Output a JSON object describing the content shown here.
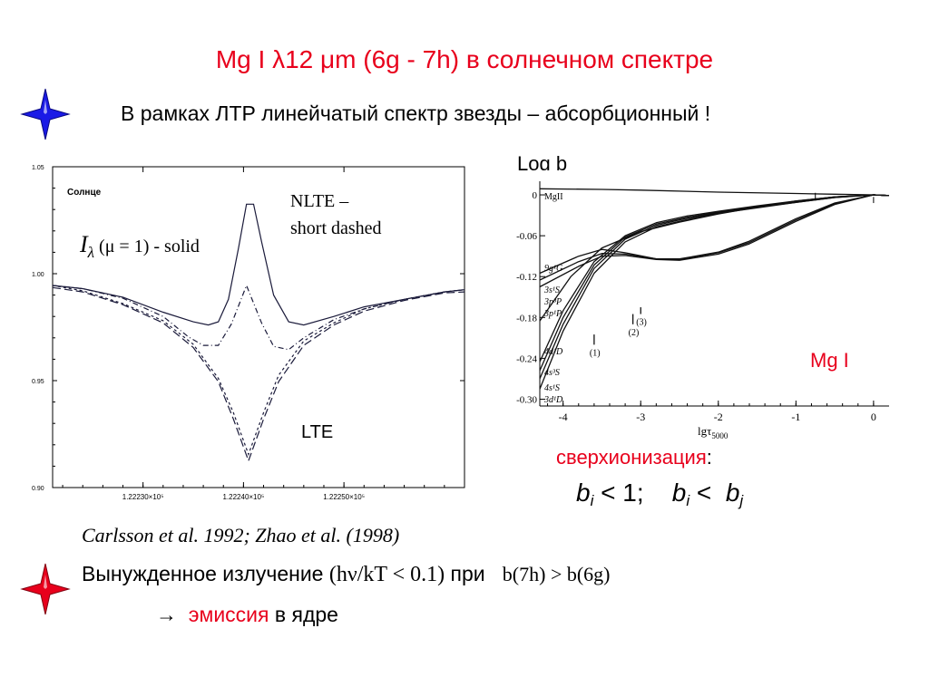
{
  "title": {
    "main": "Mg I λ12 μm (6g - 7h) в солнечном спектре"
  },
  "subtitle": "В рамках ЛТР линейчатый спектр звезды – абсорбционный !",
  "icons": {
    "bullet_top": "blue-four-point-star-icon",
    "bullet_bottom": "red-four-point-star-icon"
  },
  "colors": {
    "accent": "#e8001c",
    "star_blue": "#1a1ae6",
    "star_red": "#e8001c"
  },
  "left_chart_annotations": {
    "panel_label": "Солнце",
    "intensity_I": "I",
    "intensity_lambda": "λ",
    "intensity_rest": " (μ = 1) - solid",
    "nlte_line1": "NLTE –",
    "nlte_line2": "short dashed",
    "lte": "LTE"
  },
  "right_chart_annotations": {
    "logb": "Log b",
    "mgi": "Mg I",
    "level_mgii": "MgII",
    "level_9g": "9g¹G",
    "level_3s": "3s¹S",
    "level_3p3": "3p³P",
    "level_3p1": "3p¹P",
    "level_4d": "4d¹D",
    "level_4s3": "4s³S",
    "level_4s1": "4s¹S",
    "level_3d": "3d¹D",
    "mark_1": "(1)",
    "mark_2": "(2)",
    "mark_3": "(3)",
    "xlabel": "lgτ",
    "xlabel_sub": "5000"
  },
  "ionization": {
    "label": "сверхионизация",
    "colon": ":",
    "b": "b",
    "i": "i",
    "j": "j",
    "lt": "<",
    "one": "1;"
  },
  "citation": "Carlsson et al. 1992; Zhao et al. (1998)",
  "stimulated": {
    "text": "Вынужденное излучение ",
    "formula": "(hν/kT < 0.1)",
    "pri": " при ",
    "condition": "b(7h) > b(6g)"
  },
  "emission": {
    "arrow": "→",
    "word": "эмиссия",
    "rest": " в ядре"
  },
  "chart_data": [
    {
      "type": "line",
      "id": "solar-profile",
      "xlabel": "",
      "ylabel": "",
      "x_unit_ticks": [
        "1.22230×10⁵",
        "1.22240×10⁵",
        "1.22250×10⁵"
      ],
      "x_ticks": [
        122230,
        122240,
        122250
      ],
      "xlim": [
        122221,
        122262
      ],
      "y_ticks": [
        "0.90",
        "0.95",
        "1.00",
        "1.05"
      ],
      "ylim": [
        0.9,
        1.05
      ],
      "grid": false,
      "series": [
        {
          "style": "solid",
          "x": [
            122221,
            122224,
            122228,
            122232,
            122235,
            122236.5,
            122237.5,
            122238.5,
            122239.5,
            122240.3,
            122241,
            122241.8,
            122243,
            122244.5,
            122246,
            122249,
            122252,
            122256,
            122260,
            122262
          ],
          "values": [
            0.9945,
            0.993,
            0.989,
            0.982,
            0.9775,
            0.976,
            0.9775,
            0.988,
            1.012,
            1.0325,
            1.0325,
            1.015,
            0.99,
            0.9775,
            0.976,
            0.98,
            0.9845,
            0.988,
            0.9915,
            0.9925
          ]
        },
        {
          "style": "dash-dot",
          "x": [
            122221,
            122224,
            122228,
            122232,
            122234.5,
            122236,
            122237.5,
            122238.8,
            122240.3,
            122241.8,
            122243,
            122244.5,
            122246,
            122249,
            122252,
            122256,
            122260,
            122262
          ],
          "values": [
            0.9945,
            0.993,
            0.9885,
            0.98,
            0.9705,
            0.9665,
            0.9665,
            0.9765,
            0.9945,
            0.977,
            0.966,
            0.9645,
            0.97,
            0.9785,
            0.9835,
            0.988,
            0.9915,
            0.9925
          ]
        },
        {
          "style": "long-dash",
          "x": [
            122221,
            122224,
            122228,
            122232,
            122235,
            122237.5,
            122239,
            122240.5,
            122242,
            122243.5,
            122246,
            122249,
            122252,
            122256,
            122260,
            122262
          ],
          "values": [
            0.9935,
            0.9915,
            0.9855,
            0.977,
            0.9655,
            0.9495,
            0.932,
            0.9125,
            0.932,
            0.9495,
            0.9665,
            0.976,
            0.9825,
            0.9875,
            0.991,
            0.9915
          ]
        },
        {
          "style": "short-dash",
          "x": [
            122221,
            122224,
            122228,
            122232,
            122235,
            122237.5,
            122239,
            122240.5,
            122242,
            122243.5,
            122246,
            122249,
            122252,
            122256,
            122260,
            122262
          ],
          "values": [
            0.9945,
            0.992,
            0.986,
            0.978,
            0.967,
            0.951,
            0.935,
            0.9155,
            0.935,
            0.9525,
            0.9685,
            0.977,
            0.9835,
            0.988,
            0.9915,
            0.9925
          ]
        }
      ]
    },
    {
      "type": "line",
      "id": "departure-coefficients",
      "xlabel": "lgτ5000",
      "ylabel": "Log b",
      "x_ticks": [
        "-4",
        "-3",
        "-2",
        "-1",
        "0"
      ],
      "xlim": [
        -4.3,
        0.2
      ],
      "y_ticks": [
        "0",
        "-0.06",
        "-0.12",
        "-0.18",
        "-0.24",
        "-0.30"
      ],
      "ylim": [
        -0.31,
        0.02
      ],
      "grid": false,
      "series": [
        {
          "name": "MgII",
          "x": [
            -4.3,
            -3.5,
            -3.0,
            -2.0,
            -1.0,
            -0.5,
            0.0,
            0.2
          ],
          "values": [
            0.009,
            0.008,
            0.007,
            0.004,
            0.002,
            0.001,
            0.0,
            -0.001
          ]
        },
        {
          "name": "9g¹G",
          "x": [
            -4.3,
            -3.8,
            -3.5,
            -3.2,
            -2.8,
            -2.5,
            -2.0,
            -1.6,
            -1.0,
            -0.5,
            0.0,
            0.2
          ],
          "values": [
            -0.115,
            -0.09,
            -0.08,
            -0.085,
            -0.094,
            -0.094,
            -0.084,
            -0.068,
            -0.035,
            -0.012,
            0.0,
            -0.001
          ]
        },
        {
          "name": "3s¹S",
          "x": [
            -4.3,
            -3.8,
            -3.5,
            -3.2,
            -2.8,
            -2.5,
            -2.0,
            -1.6,
            -1.0,
            -0.5,
            0.0,
            0.2
          ],
          "values": [
            -0.125,
            -0.098,
            -0.086,
            -0.087,
            -0.094,
            -0.095,
            -0.085,
            -0.07,
            -0.037,
            -0.013,
            0.0,
            -0.001
          ]
        },
        {
          "name": "3p³P",
          "x": [
            -4.3,
            -3.8,
            -3.5,
            -3.2,
            -2.8,
            -2.5,
            -2.0,
            -1.6,
            -1.0,
            -0.5,
            0.0,
            0.2
          ],
          "values": [
            -0.135,
            -0.105,
            -0.09,
            -0.089,
            -0.095,
            -0.096,
            -0.087,
            -0.072,
            -0.039,
            -0.014,
            0.0,
            -0.001
          ]
        },
        {
          "name": "3p¹P",
          "x": [
            -4.3,
            -3.9,
            -3.5,
            -3.0,
            -2.5,
            -2.0,
            -1.5,
            -1.0,
            -0.5,
            0.0,
            0.2
          ],
          "values": [
            -0.185,
            -0.12,
            -0.078,
            -0.054,
            -0.04,
            -0.028,
            -0.018,
            -0.009,
            -0.003,
            0.0,
            -0.001
          ]
        },
        {
          "name": "4d¹D",
          "x": [
            -4.3,
            -4.0,
            -3.6,
            -3.2,
            -2.8,
            -2.4,
            -2.0,
            -1.5,
            -1.0,
            -0.5,
            0.0,
            0.2
          ],
          "values": [
            -0.245,
            -0.17,
            -0.098,
            -0.06,
            -0.041,
            -0.031,
            -0.024,
            -0.016,
            -0.009,
            -0.003,
            0.0,
            -0.001
          ]
        },
        {
          "name": "4s³S",
          "x": [
            -4.3,
            -4.0,
            -3.6,
            -3.2,
            -2.8,
            -2.4,
            -2.0,
            -1.5,
            -1.0,
            -0.5,
            0.0,
            0.2
          ],
          "values": [
            -0.258,
            -0.18,
            -0.103,
            -0.062,
            -0.043,
            -0.033,
            -0.025,
            -0.017,
            -0.01,
            -0.003,
            0.0,
            -0.001
          ]
        },
        {
          "name": "4s¹S",
          "x": [
            -4.3,
            -4.0,
            -3.6,
            -3.2,
            -2.8,
            -2.4,
            -2.0,
            -1.5,
            -1.0,
            -0.5,
            0.0,
            0.2
          ],
          "values": [
            -0.27,
            -0.19,
            -0.108,
            -0.065,
            -0.045,
            -0.034,
            -0.026,
            -0.018,
            -0.011,
            -0.004,
            0.0,
            -0.001
          ]
        },
        {
          "name": "3d¹D",
          "x": [
            -4.3,
            -4.0,
            -3.6,
            -3.2,
            -2.8,
            -2.4,
            -2.0,
            -1.5,
            -1.0,
            -0.5,
            0.0,
            0.2
          ],
          "values": [
            -0.285,
            -0.2,
            -0.115,
            -0.069,
            -0.047,
            -0.036,
            -0.027,
            -0.019,
            -0.011,
            -0.004,
            0.0,
            -0.001
          ]
        }
      ],
      "markers": [
        {
          "label": "(1)",
          "x": -3.6,
          "values": [
            -0.205,
            -0.22
          ]
        },
        {
          "label": "(2)",
          "x": -3.1,
          "values": [
            -0.175,
            -0.19
          ]
        },
        {
          "label": "(3)",
          "x": -3.0,
          "values": [
            -0.165,
            -0.175
          ]
        }
      ]
    }
  ]
}
